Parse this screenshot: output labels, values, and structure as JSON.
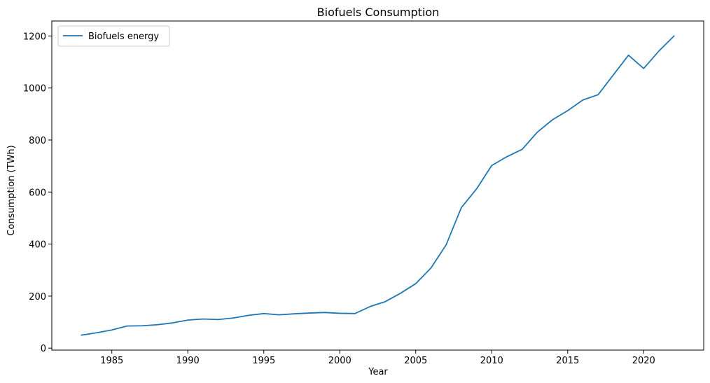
{
  "chart_data": {
    "type": "line",
    "title": "Biofuels Consumption",
    "xlabel": "Year",
    "ylabel": "Consumption (TWh)",
    "xlim": [
      1981.05,
      2023.95
    ],
    "ylim": [
      -7.5,
      1257.5
    ],
    "xticks": [
      1985,
      1990,
      1995,
      2000,
      2005,
      2010,
      2015,
      2020
    ],
    "yticks": [
      0,
      200,
      400,
      600,
      800,
      1000,
      1200
    ],
    "grid": false,
    "legend_position": "upper left",
    "series": [
      {
        "name": "Biofuels energy",
        "color": "#1f77b4",
        "x": [
          1983,
          1984,
          1985,
          1986,
          1987,
          1988,
          1989,
          1990,
          1991,
          1992,
          1993,
          1994,
          1995,
          1996,
          1997,
          1998,
          1999,
          2000,
          2001,
          2002,
          2003,
          2004,
          2005,
          2006,
          2007,
          2008,
          2009,
          2010,
          2011,
          2012,
          2013,
          2014,
          2015,
          2016,
          2017,
          2018,
          2019,
          2020,
          2021,
          2022
        ],
        "y": [
          50,
          59,
          70,
          85,
          86,
          90,
          97,
          108,
          112,
          110,
          116,
          126,
          133,
          128,
          132,
          135,
          137,
          134,
          133,
          160,
          179,
          211,
          248,
          308,
          397,
          540,
          612,
          702,
          736,
          764,
          830,
          878,
          913,
          954,
          974,
          1050,
          1126,
          1075,
          1142,
          1200
        ]
      }
    ]
  }
}
